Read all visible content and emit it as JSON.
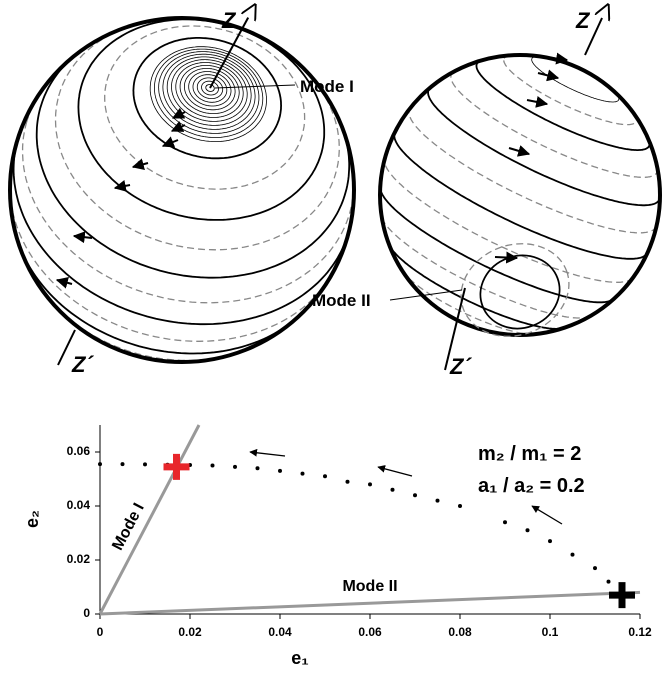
{
  "spheres": [
    {
      "axis_top": "Z",
      "axis_bottom": "Z´",
      "mode": "Mode I"
    },
    {
      "axis_top": "Z",
      "axis_bottom": "Z´",
      "mode": "Mode II"
    }
  ],
  "chart_data": {
    "type": "scatter",
    "xlabel": "e₁",
    "ylabel": "e₂",
    "annotations": [
      "m₂ / m₁ = 2",
      "a₁ / a₂ = 0.2"
    ],
    "x": [
      0,
      0.005,
      0.01,
      0.015,
      0.02,
      0.025,
      0.03,
      0.035,
      0.04,
      0.045,
      0.05,
      0.055,
      0.06,
      0.065,
      0.07,
      0.075,
      0.08,
      0.09,
      0.095,
      0.1,
      0.105,
      0.11,
      0.113,
      0.116
    ],
    "values": [
      0.0555,
      0.0555,
      0.0554,
      0.0553,
      0.0552,
      0.055,
      0.0545,
      0.054,
      0.053,
      0.052,
      0.051,
      0.049,
      0.048,
      0.046,
      0.044,
      0.042,
      0.04,
      0.034,
      0.031,
      0.027,
      0.022,
      0.017,
      0.012,
      0.007
    ],
    "color": "#000000",
    "lines": [
      {
        "label": "Mode I",
        "x": [
          0,
          0.022
        ],
        "y": [
          0,
          0.07
        ],
        "color": "#999999"
      },
      {
        "label": "Mode II",
        "x": [
          0,
          0.12
        ],
        "y": [
          0,
          0.008
        ],
        "color": "#999999"
      }
    ],
    "markers": [
      {
        "x": 0.017,
        "y": 0.0545,
        "color": "#e8262b"
      },
      {
        "x": 0.116,
        "y": 0.007,
        "color": "#000000"
      }
    ],
    "xlim": [
      0,
      0.12
    ],
    "ylim": [
      0,
      0.07
    ],
    "xticks": [
      0,
      0.02,
      0.04,
      0.06,
      0.08,
      0.1,
      0.12
    ],
    "yticks": [
      0,
      0.02,
      0.04,
      0.06
    ]
  }
}
